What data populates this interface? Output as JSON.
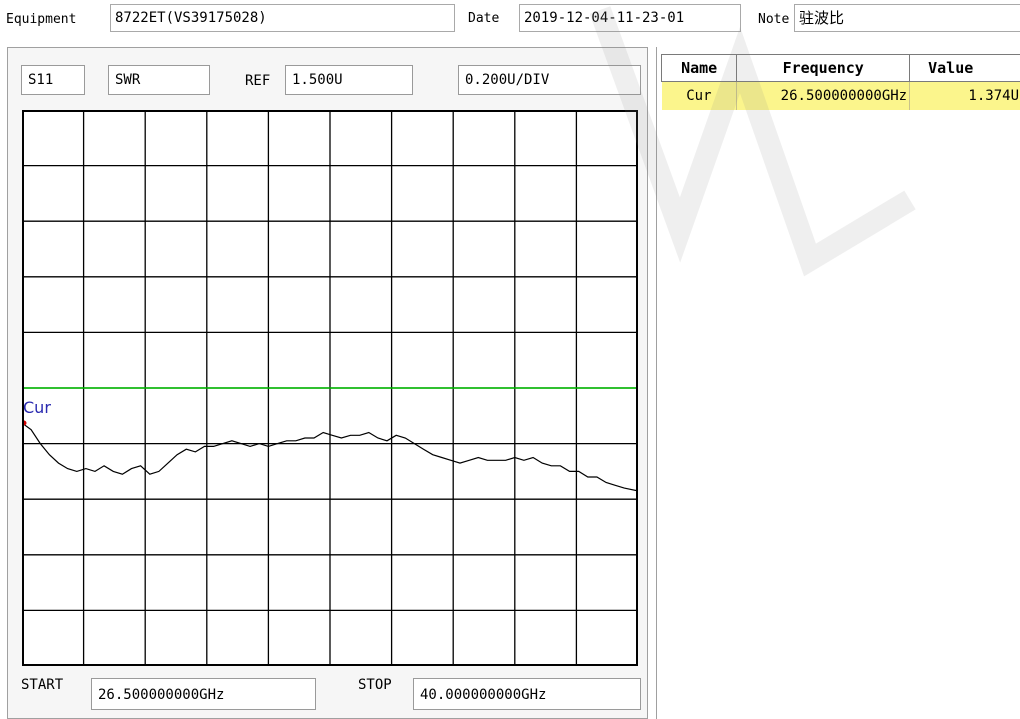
{
  "header": {
    "equipment_label": "Equipment",
    "equipment_value": "8722ET(VS39175028)",
    "date_label": "Date",
    "date_value": "2019-12-04-11-23-01",
    "note_label": "Note",
    "note_value": "驻波比"
  },
  "plot_header": {
    "param": "S11",
    "format": "SWR",
    "ref_label": "REF",
    "ref_value": "1.500U",
    "scale_value": "0.200U/DIV"
  },
  "plot_footer": {
    "start_label": "START",
    "start_value": "26.500000000GHz",
    "stop_label": "STOP",
    "stop_value": "40.000000000GHz"
  },
  "marker_label": "Cur",
  "markers_table": {
    "columns": [
      "Name",
      "Frequency",
      "Value"
    ],
    "rows": [
      {
        "name": "Cur",
        "frequency": "26.500000000GHz",
        "value": "1.374U"
      }
    ]
  },
  "colors": {
    "trace": "#000000",
    "reference_line": "#00c000",
    "marker_text": "#2a2ab0",
    "marker_dot": "#d00000",
    "selected_row": "#fbf58c"
  },
  "chart_data": {
    "type": "line",
    "x_start_ghz": 26.5,
    "x_stop_ghz": 40.0,
    "xlim": [
      26.5,
      40.0
    ],
    "ylim": [
      0.5,
      2.5
    ],
    "y_reference": 1.5,
    "y_per_div": 0.2,
    "divisions": {
      "x": 10,
      "y": 10
    },
    "grid": true,
    "series": [
      {
        "x": [
          26.5,
          26.7,
          26.9,
          27.1,
          27.3,
          27.5,
          27.7,
          27.9,
          28.1,
          28.3,
          28.5,
          28.7,
          28.9,
          29.1,
          29.3,
          29.5,
          29.7,
          29.9,
          30.1,
          30.3,
          30.5,
          30.7,
          30.9,
          31.1,
          31.3,
          31.5,
          31.7,
          31.9,
          32.1,
          32.3,
          32.5,
          32.7,
          32.9,
          33.1,
          33.3,
          33.5,
          33.7,
          33.9,
          34.1,
          34.3,
          34.5,
          34.7,
          34.9,
          35.1,
          35.3,
          35.5,
          35.7,
          35.9,
          36.1,
          36.3,
          36.5,
          36.7,
          36.9,
          37.1,
          37.3,
          37.5,
          37.7,
          37.9,
          38.1,
          38.3,
          38.5,
          38.7,
          38.9,
          39.1,
          39.3,
          39.5,
          39.7,
          40.0
        ],
        "values": [
          1.374,
          1.35,
          1.3,
          1.26,
          1.23,
          1.21,
          1.2,
          1.21,
          1.2,
          1.22,
          1.2,
          1.19,
          1.21,
          1.22,
          1.19,
          1.2,
          1.23,
          1.26,
          1.28,
          1.27,
          1.29,
          1.29,
          1.3,
          1.31,
          1.3,
          1.29,
          1.3,
          1.29,
          1.3,
          1.31,
          1.31,
          1.32,
          1.32,
          1.34,
          1.33,
          1.32,
          1.33,
          1.33,
          1.34,
          1.32,
          1.31,
          1.33,
          1.32,
          1.3,
          1.28,
          1.26,
          1.25,
          1.24,
          1.23,
          1.24,
          1.25,
          1.24,
          1.24,
          1.24,
          1.25,
          1.24,
          1.25,
          1.23,
          1.22,
          1.22,
          1.2,
          1.2,
          1.18,
          1.18,
          1.16,
          1.15,
          1.14,
          1.13
        ]
      }
    ]
  }
}
